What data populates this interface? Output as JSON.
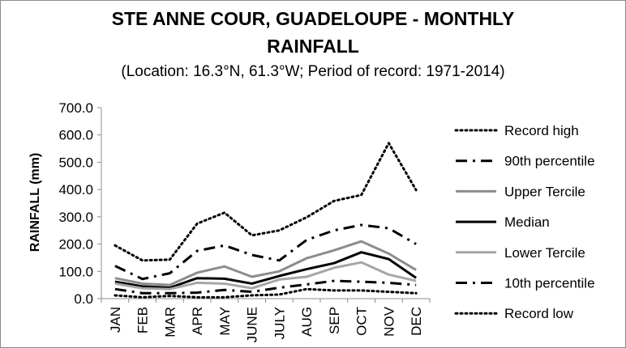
{
  "title_line1": "STE ANNE COUR, GUADELOUPE - MONTHLY",
  "title_line2": "RAINFALL",
  "subtitle": "(Location: 16.3°N, 61.3°W; Period of record: 1971-2014)",
  "chart_data": {
    "type": "line",
    "ylabel": "RAINFALL (mm)",
    "xlabel": "",
    "ylim": [
      0,
      700
    ],
    "yticks": [
      0,
      100,
      200,
      300,
      400,
      500,
      600,
      700
    ],
    "ytick_labels": [
      "0.0",
      "100.0",
      "200.0",
      "300.0",
      "400.0",
      "500.0",
      "600.0",
      "700.0"
    ],
    "categories": [
      "JAN",
      "FEB",
      "MAR",
      "APR",
      "MAY",
      "JUNE",
      "JULY",
      "AUG",
      "SEP",
      "OCT",
      "NOV",
      "DEC"
    ],
    "grid": "none",
    "legend_position": "right",
    "series": [
      {
        "name": "Record high",
        "style": "dotted",
        "color": "#000000",
        "width": 3,
        "values": [
          195,
          140,
          143,
          275,
          315,
          232,
          250,
          298,
          358,
          380,
          570,
          398
        ]
      },
      {
        "name": "90th percentile",
        "style": "dashdot",
        "color": "#000000",
        "width": 3,
        "values": [
          120,
          72,
          93,
          175,
          195,
          160,
          140,
          215,
          250,
          270,
          258,
          200
        ]
      },
      {
        "name": "Upper Tercile",
        "style": "solid",
        "color": "#8c8c8c",
        "width": 3,
        "values": [
          75,
          55,
          50,
          95,
          118,
          80,
          100,
          148,
          177,
          210,
          165,
          105
        ]
      },
      {
        "name": "Median",
        "style": "solid",
        "color": "#000000",
        "width": 3,
        "values": [
          62,
          45,
          40,
          75,
          73,
          55,
          83,
          108,
          130,
          170,
          145,
          76
        ]
      },
      {
        "name": "Lower Tercile",
        "style": "solid",
        "color": "#a6a6a6",
        "width": 3,
        "values": [
          55,
          38,
          35,
          58,
          55,
          38,
          70,
          80,
          113,
          133,
          88,
          65
        ]
      },
      {
        "name": "10th percentile",
        "style": "dashdot",
        "color": "#000000",
        "width": 3,
        "values": [
          35,
          20,
          20,
          22,
          32,
          25,
          40,
          52,
          65,
          62,
          58,
          50
        ]
      },
      {
        "name": "Record low",
        "style": "dotted",
        "color": "#000000",
        "width": 3,
        "values": [
          12,
          5,
          10,
          5,
          5,
          12,
          15,
          35,
          30,
          30,
          25,
          20
        ]
      }
    ]
  }
}
